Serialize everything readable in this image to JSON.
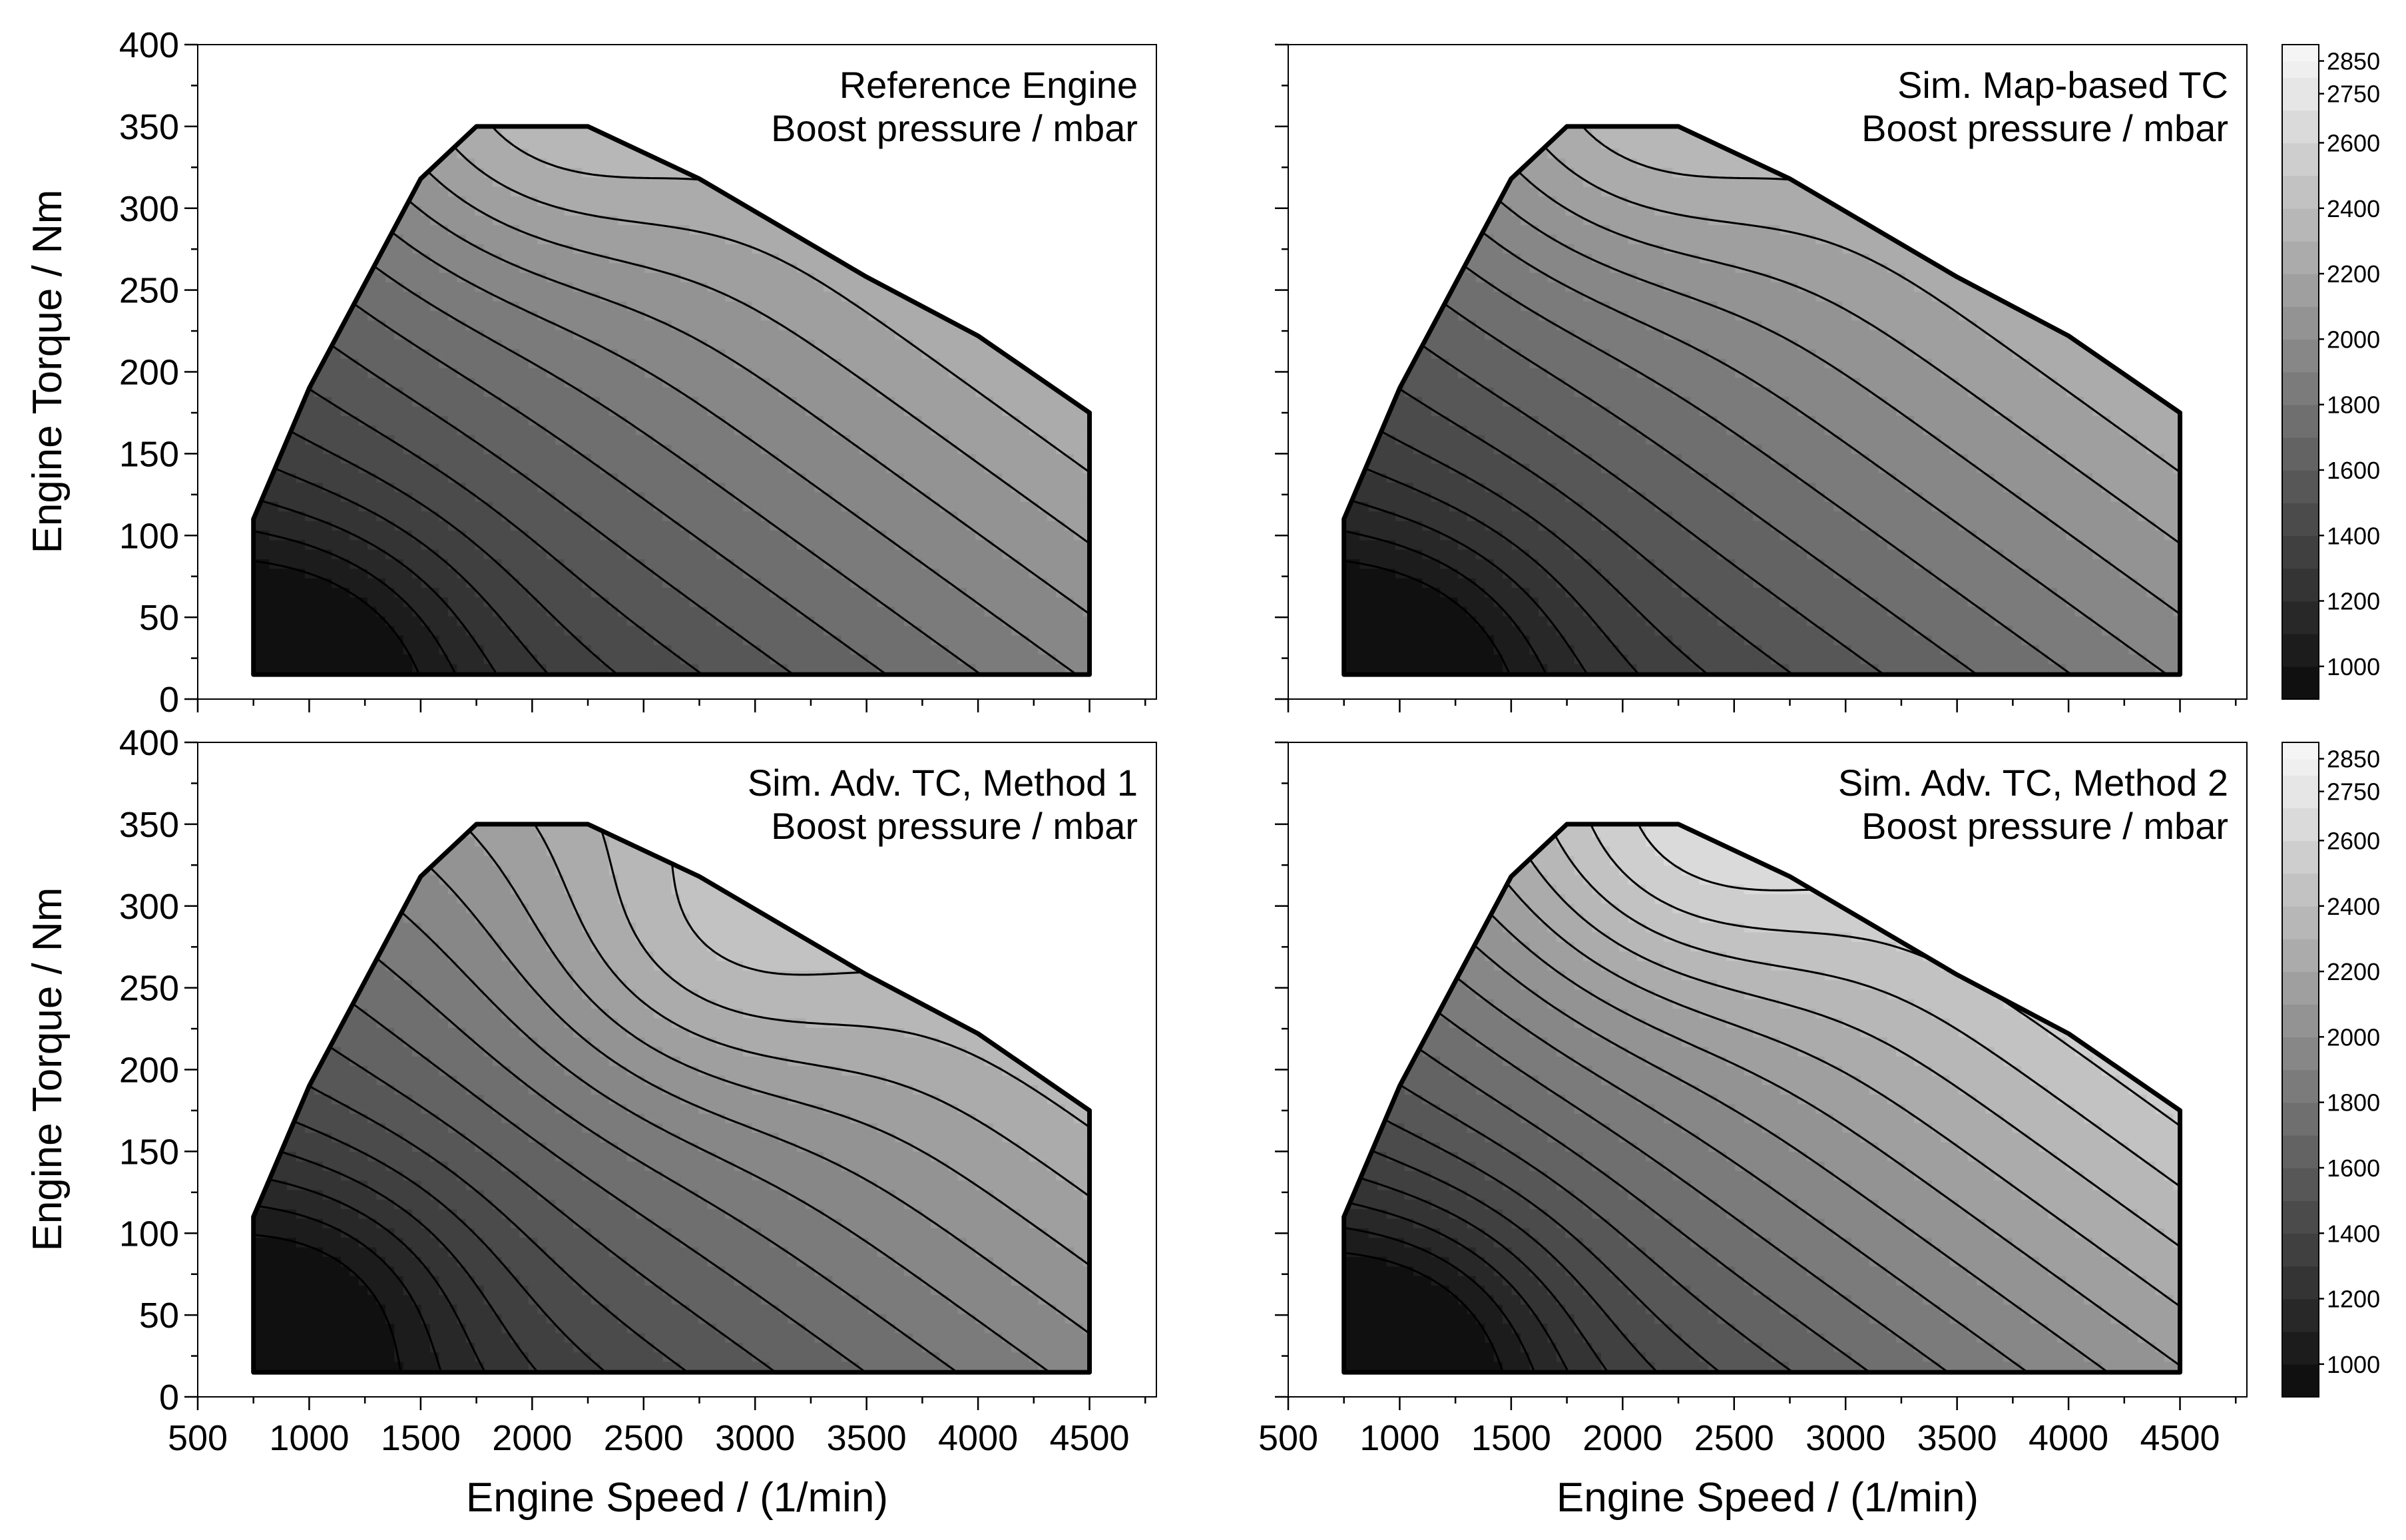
{
  "chart_data": {
    "type": "contour",
    "shared": {
      "xlabel": "Engine Speed / (1/min)",
      "ylabel": "Engine Torque / Nm",
      "xlim": [
        500,
        4800
      ],
      "ylim": [
        0,
        400
      ],
      "xticks": [
        500,
        1000,
        1500,
        2000,
        2500,
        3000,
        3500,
        4000,
        4500
      ],
      "yticks": [
        0,
        50,
        100,
        150,
        200,
        250,
        300,
        350,
        400
      ],
      "operating_limit": [
        {
          "x": 750,
          "y": 15
        },
        {
          "x": 750,
          "y": 110
        },
        {
          "x": 1000,
          "y": 190
        },
        {
          "x": 1500,
          "y": 318
        },
        {
          "x": 1750,
          "y": 350
        },
        {
          "x": 2000,
          "y": 350
        },
        {
          "x": 2250,
          "y": 350
        },
        {
          "x": 2750,
          "y": 318
        },
        {
          "x": 3500,
          "y": 258
        },
        {
          "x": 4000,
          "y": 222
        },
        {
          "x": 4500,
          "y": 175
        },
        {
          "x": 4500,
          "y": 15
        }
      ],
      "contour_levels": [
        1000,
        1100,
        1200,
        1300,
        1400,
        1500,
        1600,
        1700,
        1800,
        1900,
        2000,
        2100,
        2200,
        2300,
        2400,
        2500,
        2600,
        2700,
        2800,
        2850
      ]
    },
    "colorbar": {
      "tick_labels": [
        "2850",
        "2750",
        "2600",
        "2400",
        "2200",
        "2000",
        "1800",
        "1600",
        "1400",
        "1200",
        "1000"
      ],
      "range": [
        900,
        2900
      ],
      "colormap": "grayscale (dark = low, light = high)"
    },
    "panels": [
      {
        "id": "ref",
        "title_line1": "Reference Engine",
        "title_line2": "Boost pressure / mbar",
        "value_range": [
          950,
          2600
        ],
        "low_region": {
          "speed": 1000,
          "torque": 30
        },
        "high_region": {
          "speed": 2000,
          "torque": 350
        }
      },
      {
        "id": "map",
        "title_line1": "Sim. Map-based TC",
        "title_line2": "Boost pressure / mbar",
        "value_range": [
          950,
          2600
        ],
        "low_region": {
          "speed": 1000,
          "torque": 30
        },
        "high_region": {
          "speed": 2000,
          "torque": 350
        }
      },
      {
        "id": "m1",
        "title_line1": "Sim. Adv. TC, Method 1",
        "title_line2": "Boost pressure / mbar",
        "value_range": [
          950,
          2650
        ],
        "low_region": {
          "speed": 1000,
          "torque": 60
        },
        "high_region": {
          "speed": 2800,
          "torque": 270
        }
      },
      {
        "id": "m2",
        "title_line1": "Sim. Adv. TC, Method 2",
        "title_line2": "Boost pressure / mbar",
        "value_range": [
          950,
          2900
        ],
        "low_region": {
          "speed": 1000,
          "torque": 40
        },
        "high_region": {
          "speed": 2250,
          "torque": 330
        }
      }
    ]
  }
}
